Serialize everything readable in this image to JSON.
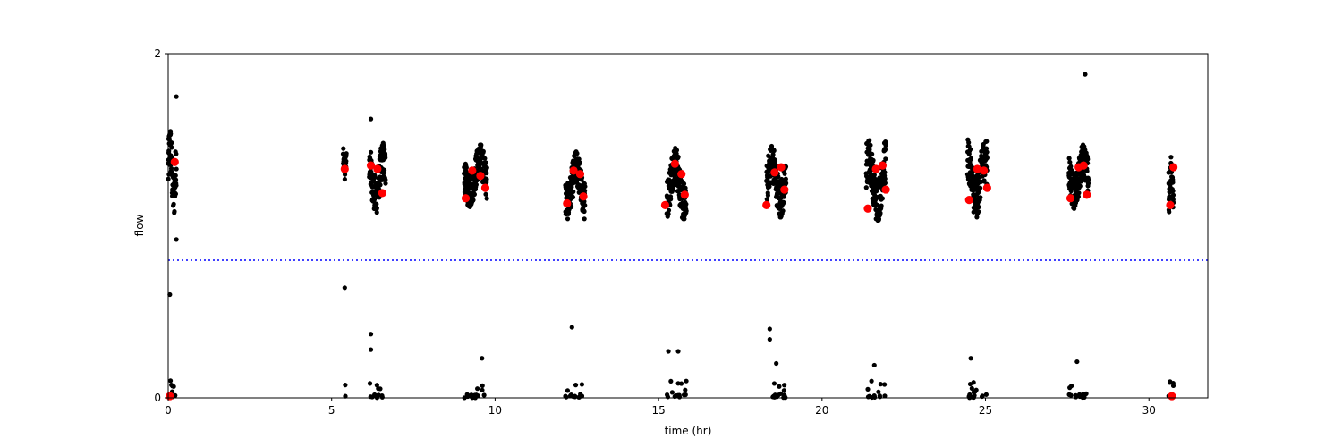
{
  "chart_data": {
    "type": "scatter",
    "xlabel": "time (hr)",
    "ylabel": "flow",
    "xlim": [
      0,
      31.8
    ],
    "ylim": [
      0,
      2
    ],
    "x_ticks": [
      0,
      5,
      10,
      15,
      20,
      25,
      30
    ],
    "y_ticks": [
      0,
      2
    ],
    "threshold": {
      "y": 0.8,
      "color": "#0000ff",
      "style": "dotted"
    },
    "grid": false,
    "colors": {
      "points": "#000000",
      "highlights": "#ff0000",
      "threshold": "#0000ff"
    },
    "clusters": [
      {
        "x0": 0.0,
        "x1": 0.25,
        "high_min": 1.05,
        "high_max": 1.58,
        "low_count": 12
      },
      {
        "x0": 5.35,
        "x1": 5.45,
        "high_min": 1.27,
        "high_max": 1.45,
        "low_count": 2
      },
      {
        "x0": 6.15,
        "x1": 6.65,
        "high_min": 1.07,
        "high_max": 1.48,
        "low_count": 14
      },
      {
        "x0": 9.05,
        "x1": 9.75,
        "high_min": 1.11,
        "high_max": 1.47,
        "low_count": 16
      },
      {
        "x0": 12.15,
        "x1": 12.75,
        "high_min": 1.04,
        "high_max": 1.43,
        "low_count": 14
      },
      {
        "x0": 15.25,
        "x1": 15.85,
        "high_min": 1.04,
        "high_max": 1.46,
        "low_count": 16
      },
      {
        "x0": 18.3,
        "x1": 18.9,
        "high_min": 1.05,
        "high_max": 1.47,
        "low_count": 16
      },
      {
        "x0": 21.35,
        "x1": 21.95,
        "high_min": 1.03,
        "high_max": 1.5,
        "low_count": 14
      },
      {
        "x0": 24.45,
        "x1": 25.05,
        "high_min": 1.05,
        "high_max": 1.5,
        "low_count": 16
      },
      {
        "x0": 27.55,
        "x1": 28.15,
        "high_min": 1.1,
        "high_max": 1.47,
        "low_count": 16
      },
      {
        "x0": 30.6,
        "x1": 30.75,
        "high_min": 1.08,
        "high_max": 1.44,
        "low_count": 10
      }
    ],
    "outliers": [
      {
        "x": 0.25,
        "y": 1.75
      },
      {
        "x": 0.25,
        "y": 0.92
      },
      {
        "x": 0.05,
        "y": 0.6
      },
      {
        "x": 5.4,
        "y": 0.64
      },
      {
        "x": 6.2,
        "y": 1.62
      },
      {
        "x": 6.2,
        "y": 0.37
      },
      {
        "x": 6.2,
        "y": 0.28
      },
      {
        "x": 9.6,
        "y": 0.23
      },
      {
        "x": 12.35,
        "y": 0.41
      },
      {
        "x": 15.3,
        "y": 0.27
      },
      {
        "x": 15.6,
        "y": 0.27
      },
      {
        "x": 18.4,
        "y": 0.34
      },
      {
        "x": 18.4,
        "y": 0.4
      },
      {
        "x": 18.6,
        "y": 0.2
      },
      {
        "x": 21.6,
        "y": 0.19
      },
      {
        "x": 24.55,
        "y": 0.23
      },
      {
        "x": 27.8,
        "y": 0.21
      },
      {
        "x": 28.05,
        "y": 1.88
      }
    ],
    "highlights": [
      {
        "x": 0.2,
        "y": 1.37
      },
      {
        "x": 5.4,
        "y": 1.33
      },
      {
        "x": 6.2,
        "y": 1.35
      },
      {
        "x": 6.4,
        "y": 1.33
      },
      {
        "x": 6.55,
        "y": 1.19
      },
      {
        "x": 9.1,
        "y": 1.16
      },
      {
        "x": 9.3,
        "y": 1.32
      },
      {
        "x": 9.55,
        "y": 1.29
      },
      {
        "x": 9.7,
        "y": 1.22
      },
      {
        "x": 12.2,
        "y": 1.13
      },
      {
        "x": 12.4,
        "y": 1.32
      },
      {
        "x": 12.6,
        "y": 1.3
      },
      {
        "x": 12.7,
        "y": 1.17
      },
      {
        "x": 15.2,
        "y": 1.12
      },
      {
        "x": 15.5,
        "y": 1.36
      },
      {
        "x": 15.7,
        "y": 1.3
      },
      {
        "x": 15.8,
        "y": 1.18
      },
      {
        "x": 18.3,
        "y": 1.12
      },
      {
        "x": 18.55,
        "y": 1.31
      },
      {
        "x": 18.75,
        "y": 1.34
      },
      {
        "x": 18.85,
        "y": 1.21
      },
      {
        "x": 21.4,
        "y": 1.1
      },
      {
        "x": 21.65,
        "y": 1.33
      },
      {
        "x": 21.85,
        "y": 1.35
      },
      {
        "x": 21.95,
        "y": 1.21
      },
      {
        "x": 24.5,
        "y": 1.15
      },
      {
        "x": 24.75,
        "y": 1.33
      },
      {
        "x": 24.95,
        "y": 1.32
      },
      {
        "x": 25.05,
        "y": 1.22
      },
      {
        "x": 27.6,
        "y": 1.16
      },
      {
        "x": 27.85,
        "y": 1.34
      },
      {
        "x": 28.0,
        "y": 1.35
      },
      {
        "x": 28.1,
        "y": 1.18
      },
      {
        "x": 30.65,
        "y": 1.12
      },
      {
        "x": 30.75,
        "y": 1.34
      },
      {
        "x": 0.05,
        "y": 0.01
      },
      {
        "x": 30.7,
        "y": 0.01
      }
    ]
  }
}
